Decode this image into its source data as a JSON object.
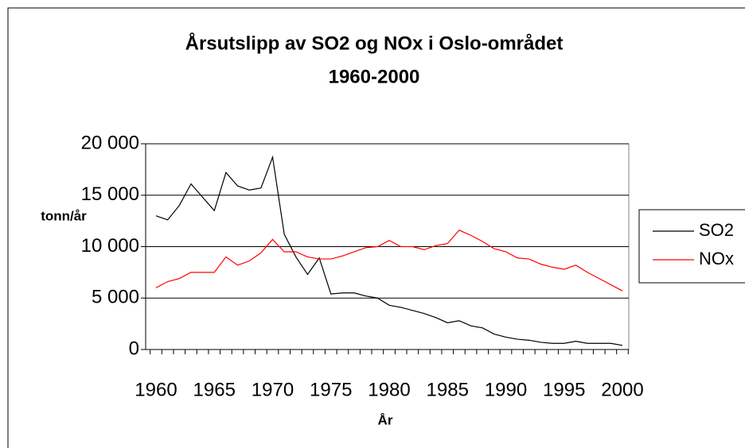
{
  "chart_data": {
    "type": "line",
    "title": [
      "Årsutslipp av SO2 og NOx i Oslo-området",
      "1960-2000"
    ],
    "y_label": "tonn/år",
    "x_label": "År",
    "categories": [
      "1960",
      null,
      null,
      null,
      null,
      "1965",
      null,
      null,
      null,
      null,
      "1970",
      null,
      null,
      null,
      null,
      "1975",
      null,
      null,
      null,
      null,
      "1980",
      null,
      null,
      null,
      null,
      "1985",
      null,
      null,
      null,
      null,
      "1990",
      null,
      null,
      null,
      null,
      "1995",
      null,
      null,
      null,
      null,
      "2000"
    ],
    "series": [
      {
        "name": "SO2",
        "color": "#000000",
        "values": [
          13000,
          12600,
          14000,
          16100,
          14800,
          13500,
          17200,
          15900,
          15500,
          15700,
          18700,
          11200,
          9000,
          7300,
          8900,
          5400,
          5500,
          5500,
          5200,
          5000,
          4300,
          4100,
          3800,
          3500,
          3100,
          2600,
          2800,
          2300,
          2100,
          1500,
          1200,
          1000,
          900,
          700,
          600,
          600,
          800,
          600,
          600,
          600,
          400
        ]
      },
      {
        "name": "NOx",
        "color": "#ff0000",
        "values": [
          6000,
          6600,
          6900,
          7500,
          7500,
          7500,
          9000,
          8200,
          8600,
          9400,
          10700,
          9500,
          9500,
          9000,
          8800,
          8800,
          9100,
          9500,
          9900,
          10000,
          10600,
          10000,
          10000,
          9700,
          10100,
          10300,
          11600,
          11100,
          10500,
          9800,
          9500,
          8900,
          8800,
          8300,
          8000,
          7800,
          8200,
          7500,
          6900,
          6300,
          5700
        ]
      }
    ],
    "ylim": [
      0,
      20000
    ],
    "yticks": [
      0,
      {
        "value": 5000,
        "label": "5 000"
      },
      {
        "value": 10000,
        "label": "10 000"
      },
      {
        "value": 15000,
        "label": "15 000"
      },
      {
        "value": 20000,
        "label": "20 000"
      }
    ],
    "grid": true,
    "legend": "right"
  }
}
